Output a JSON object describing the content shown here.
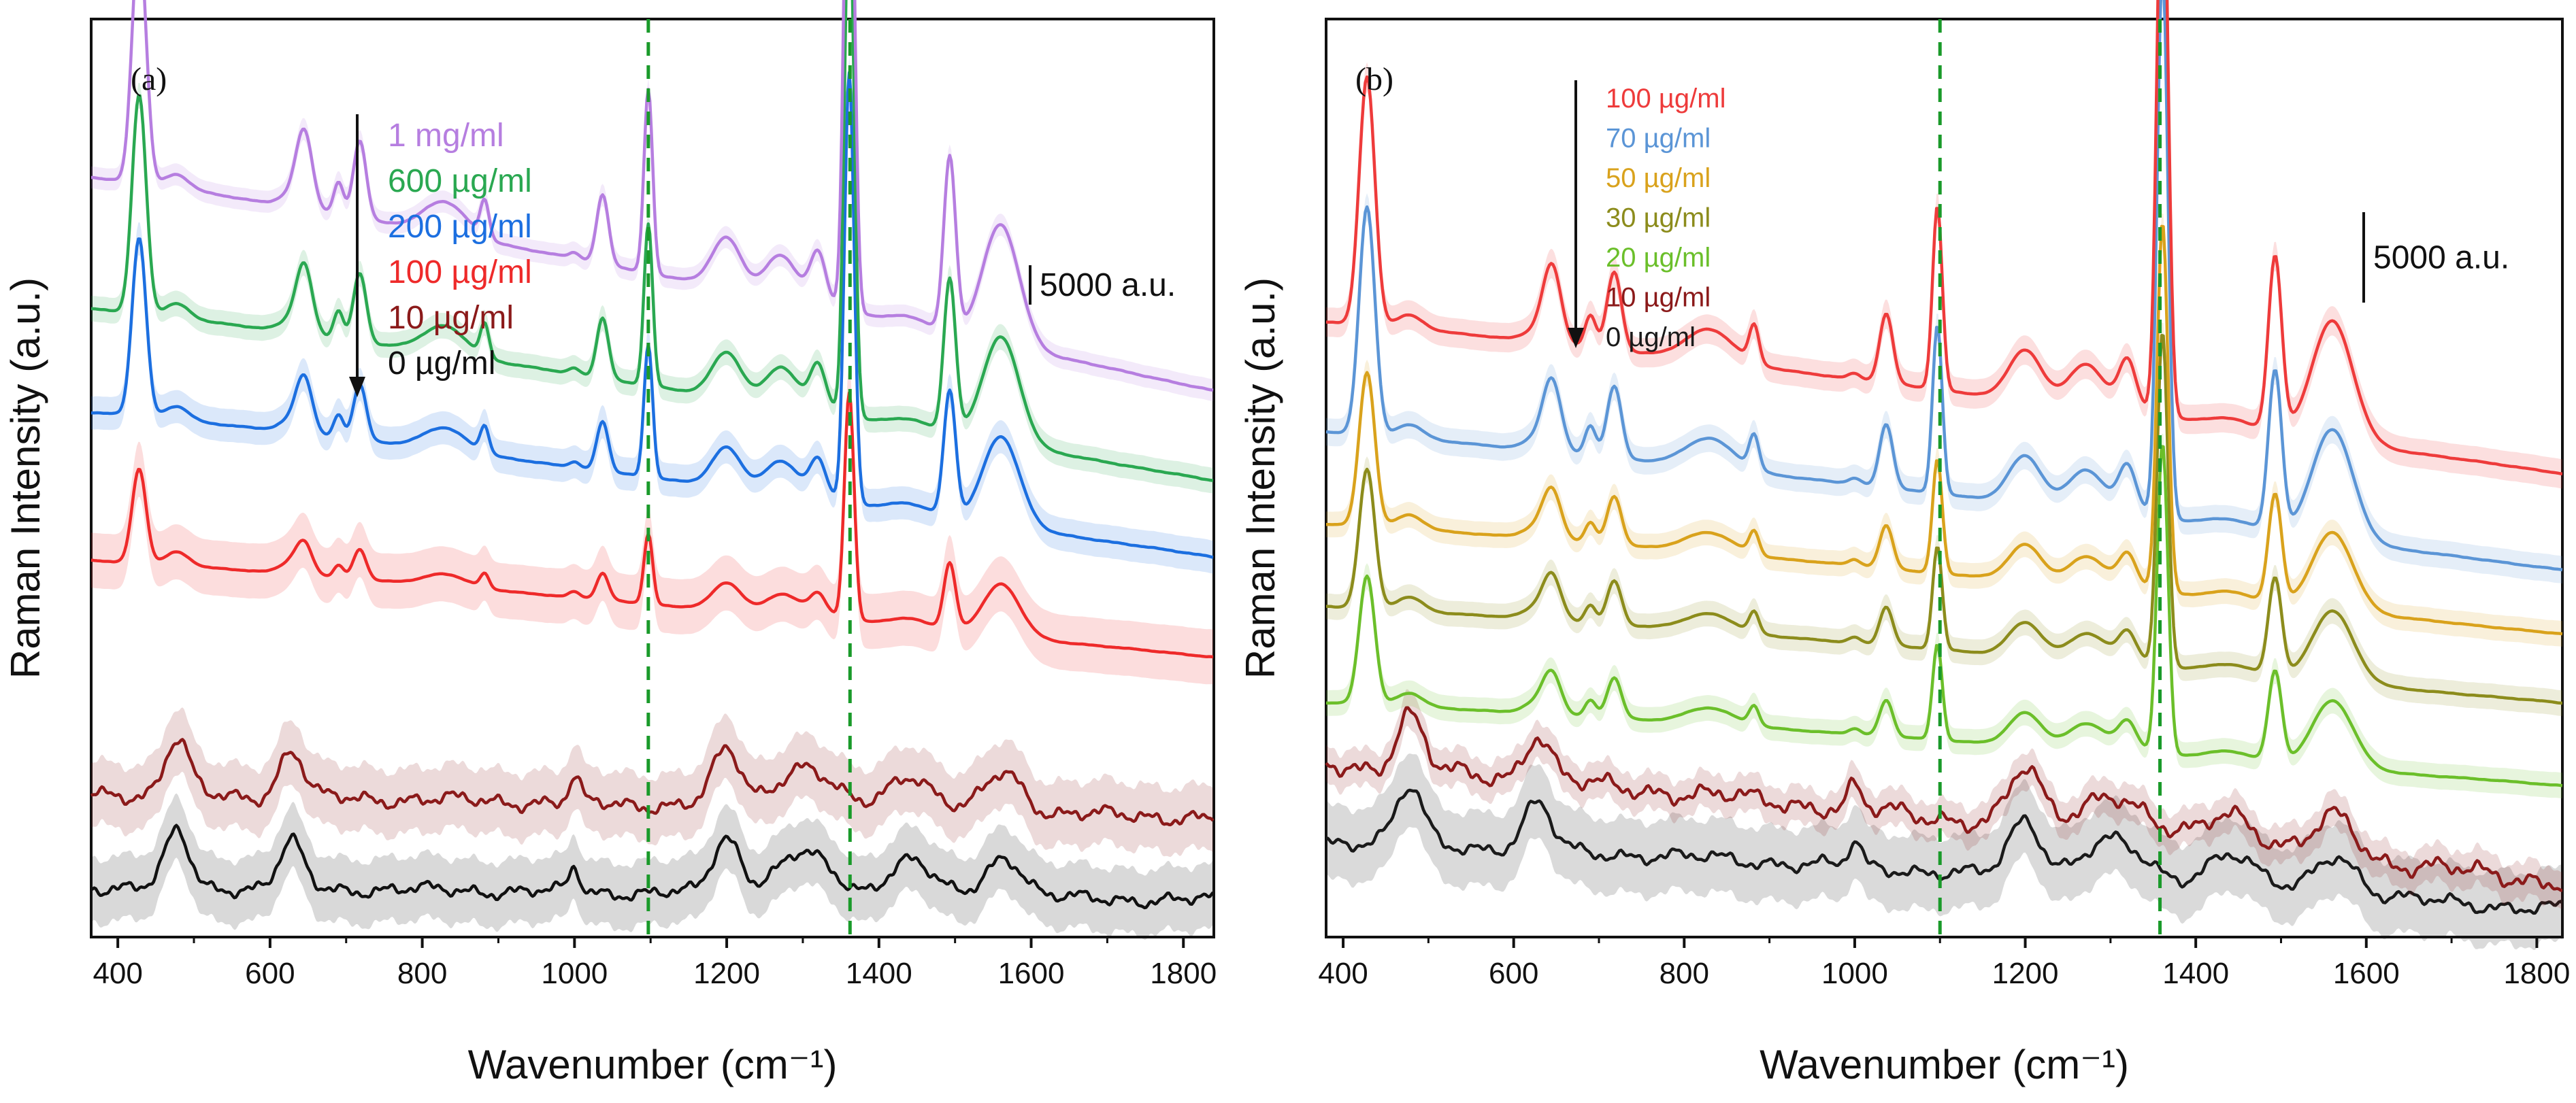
{
  "figure": {
    "panel_a_tag": "(a)",
    "panel_b_tag": "(b)"
  },
  "chart_data": [
    {
      "type": "line",
      "panel_label": "(a)",
      "title": "",
      "xlabel": "Wavenumber (cm⁻¹)",
      "ylabel": "Raman Intensity (a.u.)",
      "xlim": [
        365,
        1840
      ],
      "ylim": [
        0,
        1
      ],
      "xticks": [
        400,
        600,
        800,
        1000,
        1200,
        1400,
        1600,
        1800
      ],
      "xtick_labels": [
        "400",
        "600",
        "800",
        "1000",
        "1200",
        "1400",
        "1600",
        "1800"
      ],
      "reference_lines": [
        1097,
        1362
      ],
      "scale_bar": {
        "label": "5000 a.u."
      },
      "legend": {
        "placement": "top-left",
        "arrow": "down"
      },
      "series": [
        {
          "name": "1 mg/ml",
          "color": "#b67ee0",
          "baseline": 0.595,
          "slope": 0.31,
          "amp": 1.0,
          "noise": 0.06,
          "shade": 0.012
        },
        {
          "name": "600 µg/ml",
          "color": "#2aa851",
          "baseline": 0.497,
          "slope": 0.25,
          "amp": 0.88,
          "noise": 0.06,
          "shade": 0.014
        },
        {
          "name": "200 µg/ml",
          "color": "#1c6fe0",
          "baseline": 0.414,
          "slope": 0.21,
          "amp": 0.72,
          "noise": 0.06,
          "shade": 0.018
        },
        {
          "name": "100 µg/ml",
          "color": "#ee2a2a",
          "baseline": 0.305,
          "slope": 0.14,
          "amp": 0.38,
          "noise": 0.05,
          "shade": 0.03
        },
        {
          "name": "10 µg/ml",
          "color": "#8b1a1a",
          "baseline": 0.13,
          "slope": 0.035,
          "amp": 0.0,
          "noise": 1.0,
          "shade": 0.035
        },
        {
          "name": "0 µg/ml",
          "color": "#111111",
          "baseline": 0.04,
          "slope": 0.02,
          "amp": 0.0,
          "noise": 0.9,
          "shade": 0.035
        }
      ]
    },
    {
      "type": "line",
      "panel_label": "(b)",
      "title": "",
      "xlabel": "Wavenumber (cm⁻¹)",
      "ylabel": "Raman Intensity (a.u.)",
      "xlim": [
        380,
        1830
      ],
      "ylim": [
        0,
        1
      ],
      "xticks": [
        400,
        600,
        800,
        1000,
        1200,
        1400,
        1600,
        1800
      ],
      "xtick_labels": [
        "400",
        "600",
        "800",
        "1000",
        "1200",
        "1400",
        "1600",
        "1800"
      ],
      "reference_lines": [
        1100,
        1358
      ],
      "scale_bar": {
        "label": "5000 a.u."
      },
      "legend": {
        "placement": "top-left",
        "arrow": "down"
      },
      "series": [
        {
          "name": "100 µg/ml",
          "color": "#ee3b3b",
          "baseline": 0.505,
          "slope": 0.22,
          "amp": 1.0,
          "noise": 0.05,
          "shade": 0.016
        },
        {
          "name": "70 µg/ml",
          "color": "#5b95d6",
          "baseline": 0.4,
          "slope": 0.2,
          "amp": 0.92,
          "noise": 0.05,
          "shade": 0.015
        },
        {
          "name": "50 µg/ml",
          "color": "#d9a21c",
          "baseline": 0.33,
          "slope": 0.16,
          "amp": 0.62,
          "noise": 0.05,
          "shade": 0.014
        },
        {
          "name": "30 µg/ml",
          "color": "#8c8c1c",
          "baseline": 0.255,
          "slope": 0.14,
          "amp": 0.56,
          "noise": 0.05,
          "shade": 0.014
        },
        {
          "name": "20 µg/ml",
          "color": "#6bbf2a",
          "baseline": 0.165,
          "slope": 0.12,
          "amp": 0.52,
          "noise": 0.05,
          "shade": 0.014
        },
        {
          "name": "10 µg/ml",
          "color": "#8b1a1a",
          "baseline": 0.06,
          "slope": 0.17,
          "amp": 0.0,
          "noise": 1.3,
          "shade": 0.02
        },
        {
          "name": "0 µg/ml",
          "color": "#1a1a1a",
          "baseline": 0.03,
          "slope": 0.1,
          "amp": 0.0,
          "noise": 1.0,
          "shade": 0.04
        }
      ]
    }
  ]
}
